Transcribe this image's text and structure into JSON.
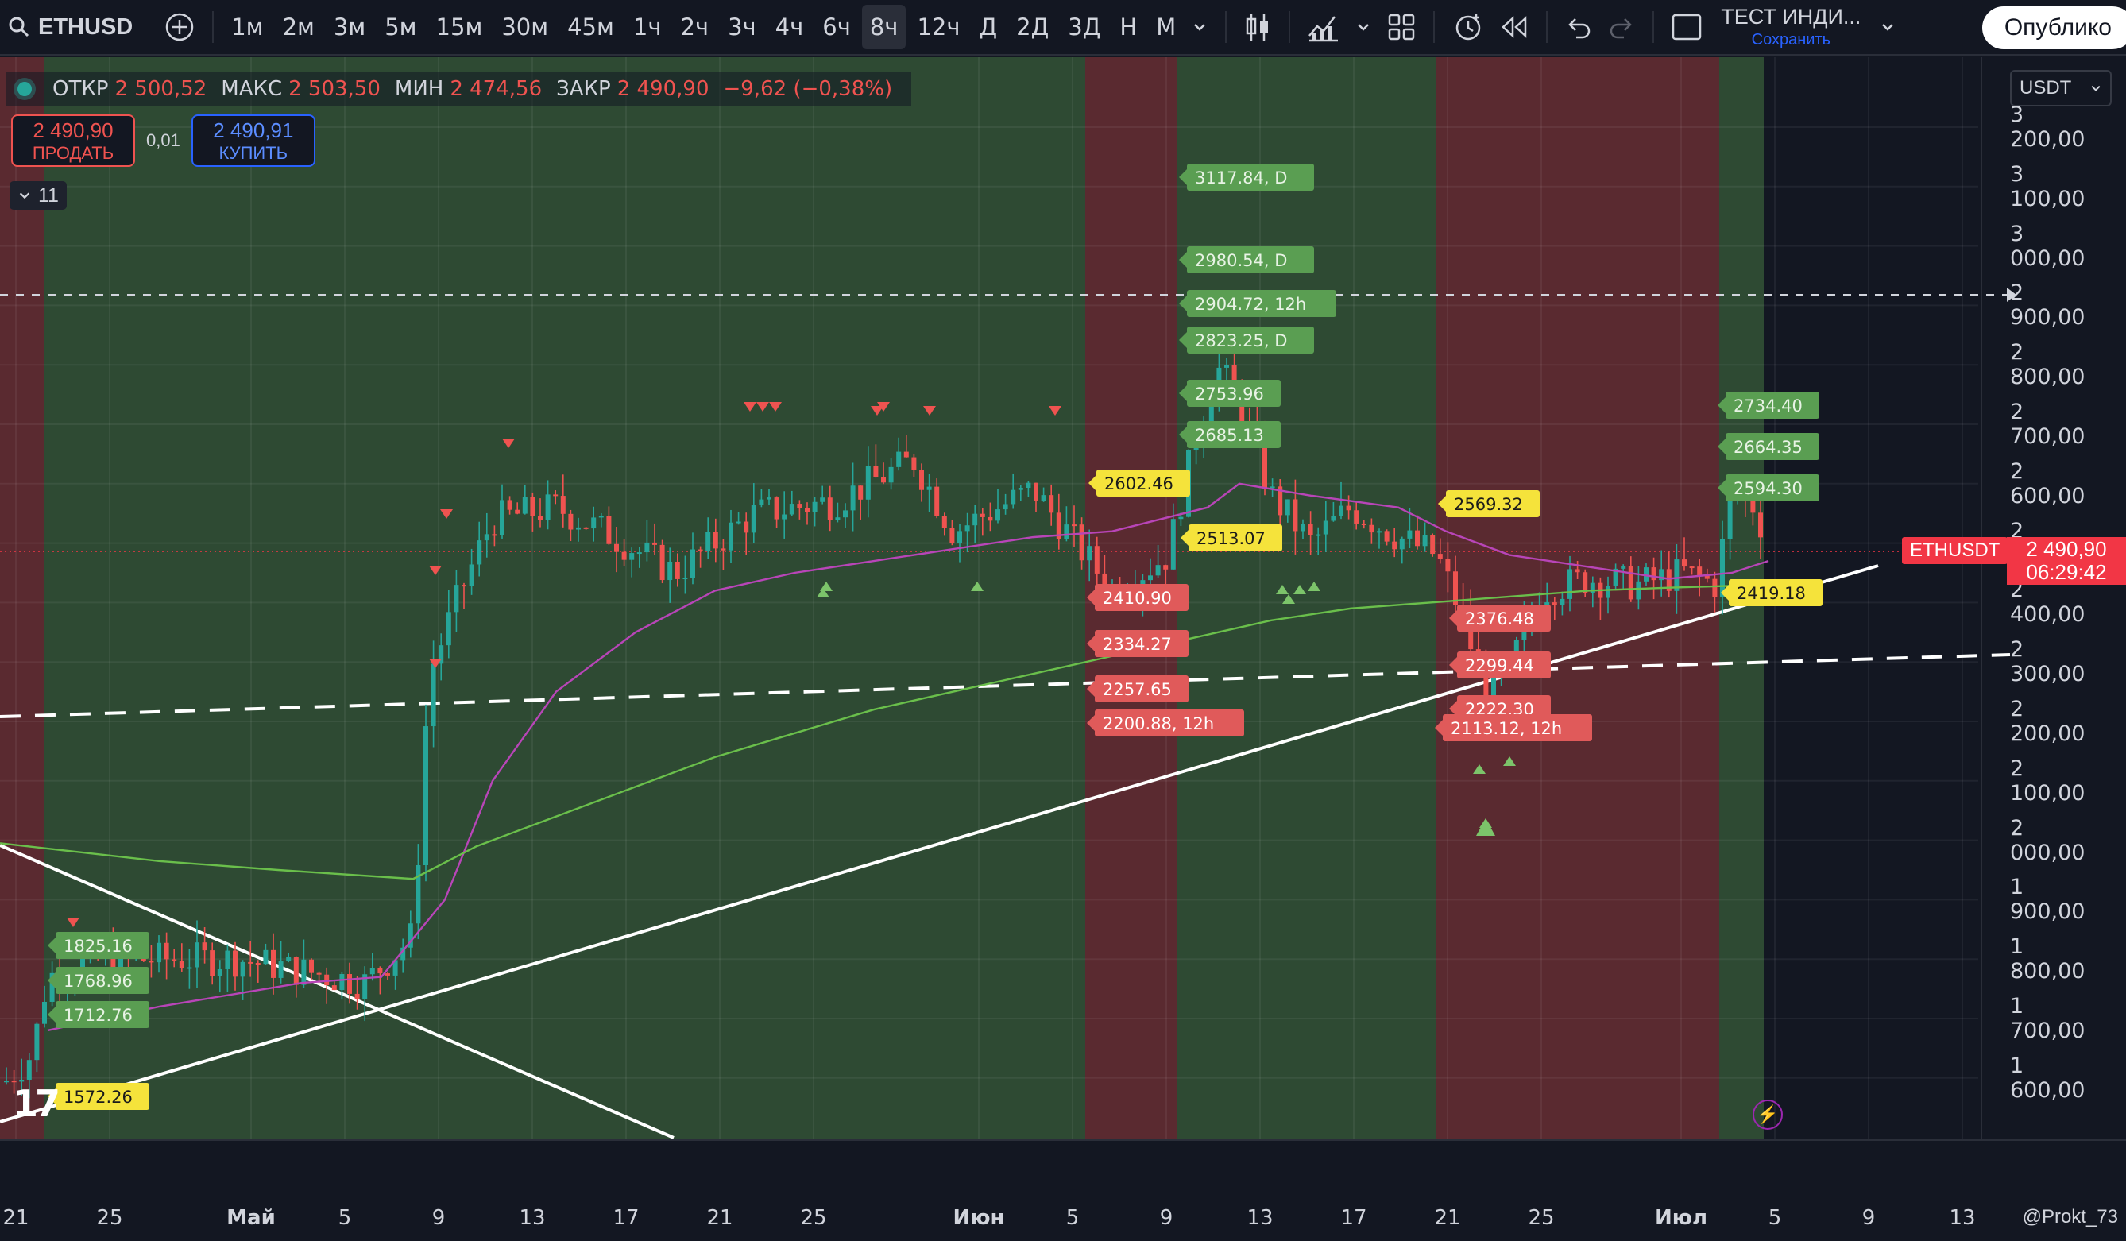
{
  "toolbar": {
    "symbol": "ETHUSD",
    "intervals": [
      "1м",
      "2м",
      "3м",
      "5м",
      "15м",
      "30м",
      "45м",
      "1ч",
      "2ч",
      "3ч",
      "4ч",
      "6ч",
      "8ч",
      "12ч",
      "Д",
      "2Д",
      "3Д",
      "Н",
      "М"
    ],
    "active_interval": "8ч",
    "layout_name": "ТЕСТ ИНДИ...",
    "save_label": "Сохранить",
    "publish_label": "Опублико"
  },
  "legend": {
    "open_label": "ОТКР",
    "open": "2 500,52",
    "high_label": "МАКС",
    "high": "2 503,50",
    "low_label": "МИН",
    "low": "2 474,56",
    "close_label": "ЗАКР",
    "close": "2 490,90",
    "change": "−9,62 (−0,38%)"
  },
  "trade": {
    "sell_price": "2 490,90",
    "sell_label": "ПРОДАТЬ",
    "spread": "0,01",
    "buy_price": "2 490,91",
    "buy_label": "КУПИТЬ"
  },
  "indicators_count": "11",
  "currency": "USDT",
  "price_scale": [
    "3 200,00",
    "3 100,00",
    "3 000,00",
    "2 900,00",
    "2 800,00",
    "2 700,00",
    "2 600,00",
    "2 500,00",
    "2 400,00",
    "2 300,00",
    "2 200,00",
    "2 100,00",
    "2 000,00",
    "1 900,00",
    "1 800,00",
    "1 700,00",
    "1 600,00"
  ],
  "current": {
    "ticker": "ETHUSDT",
    "price": "2 490,90",
    "countdown": "06:29:42"
  },
  "time_axis": [
    {
      "label": "21"
    },
    {
      "label": "25"
    },
    {
      "label": "Май",
      "bold": true
    },
    {
      "label": "5"
    },
    {
      "label": "9"
    },
    {
      "label": "13"
    },
    {
      "label": "17"
    },
    {
      "label": "21"
    },
    {
      "label": "25"
    },
    {
      "label": "Июн",
      "bold": true
    },
    {
      "label": "5"
    },
    {
      "label": "9"
    },
    {
      "label": "13"
    },
    {
      "label": "17"
    },
    {
      "label": "21"
    },
    {
      "label": "25"
    },
    {
      "label": "Июл",
      "bold": true
    },
    {
      "label": "5"
    },
    {
      "label": "9"
    },
    {
      "label": "13"
    }
  ],
  "level_labels": {
    "green": [
      "3117.84, D",
      "2980.54, D",
      "2904.72, 12h",
      "2823.25, D",
      "2753.96",
      "2685.13",
      "2734.40",
      "2664.35",
      "2594.30",
      "1825.16",
      "1768.96",
      "1712.76"
    ],
    "red": [
      "2410.90",
      "2334.27",
      "2257.65",
      "2200.88, 12h",
      "2376.48",
      "2299.44",
      "2222.30",
      "2113.12, 12h"
    ],
    "yellow": [
      "2602.46",
      "2513.07",
      "2569.32",
      "2419.18",
      "1572.26"
    ]
  },
  "author": "@Prokt_73",
  "colors": {
    "up": "#26a69a",
    "down": "#ef5350",
    "bg_bull": "#2e4a33",
    "bg_bear": "#5a2a30",
    "ma_fast": "#b845b8",
    "ma_slow": "#6abf4b"
  }
}
